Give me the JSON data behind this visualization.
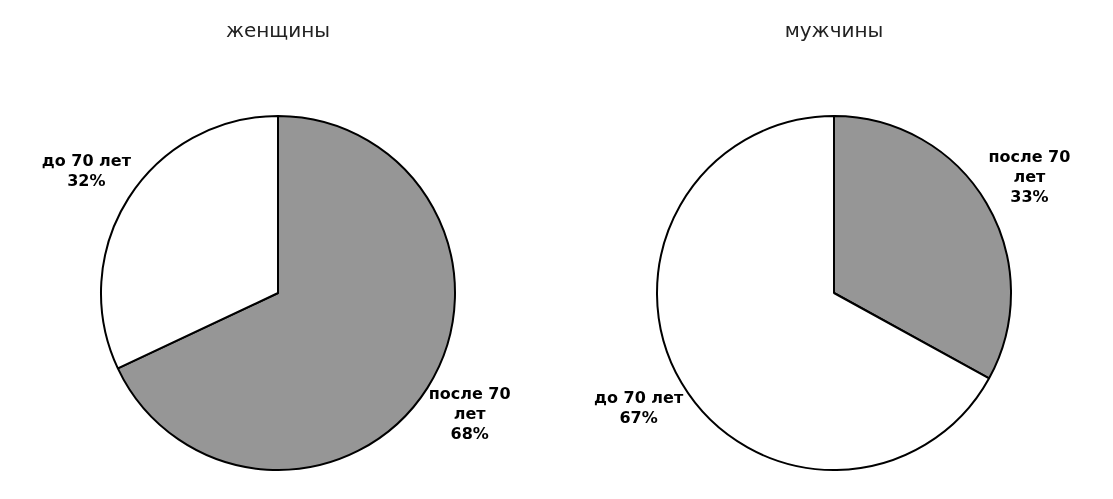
{
  "chart_data": [
    {
      "type": "pie",
      "title": "женщины",
      "categories": [
        "после 70 лет",
        "до 70 лет"
      ],
      "values": [
        68,
        32
      ],
      "value_labels": [
        "68%",
        "32%"
      ],
      "colors": [
        "#969696",
        "#ffffff"
      ],
      "legend": false
    },
    {
      "type": "pie",
      "title": "мужчины",
      "categories": [
        "после 70 лет",
        "до 70 лет"
      ],
      "values": [
        33,
        67
      ],
      "value_labels": [
        "33%",
        "67%"
      ],
      "colors": [
        "#969696",
        "#ffffff"
      ],
      "legend": false
    }
  ]
}
